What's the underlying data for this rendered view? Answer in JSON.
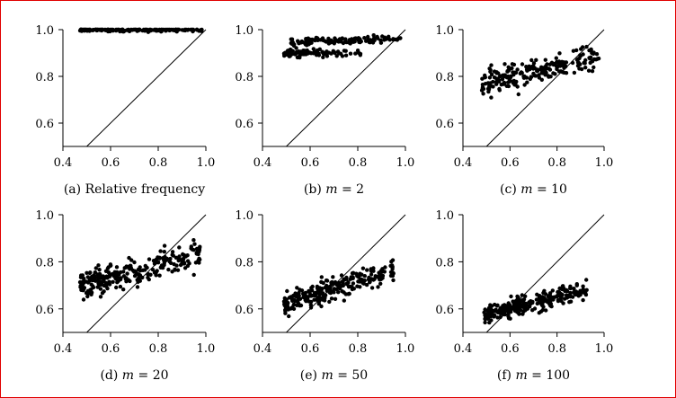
{
  "chart_data": [
    {
      "type": "scatter",
      "caption_prefix": "(a) Relative frequency",
      "caption_var": "",
      "caption_value": "",
      "xlim": [
        0.4,
        1.0
      ],
      "ylim": [
        0.5,
        1.0
      ],
      "xticks": [
        "0.4",
        "0.6",
        "0.8",
        "1.0"
      ],
      "yticks": [
        "0.6",
        "0.8",
        "1.0"
      ],
      "diagonal": true,
      "point_clusters": [
        {
          "n": 170,
          "x_range": [
            0.47,
            0.99
          ],
          "y_center": 1.0,
          "y_noise": 0.005,
          "y_slope": 0.0,
          "seed": 11
        }
      ]
    },
    {
      "type": "scatter",
      "caption_prefix": "(b) ",
      "caption_var": "m",
      "caption_value": " = 2",
      "xlim": [
        0.4,
        1.0
      ],
      "ylim": [
        0.5,
        1.0
      ],
      "xticks": [
        "0.4",
        "0.6",
        "0.8",
        "1.0"
      ],
      "yticks": [
        "0.6",
        "0.8",
        "1.0"
      ],
      "diagonal": true,
      "point_clusters": [
        {
          "n": 130,
          "x_range": [
            0.52,
            0.98
          ],
          "y_center": 0.945,
          "y_noise": 0.008,
          "y_slope": 0.03,
          "seed": 21
        },
        {
          "n": 90,
          "x_range": [
            0.49,
            0.82
          ],
          "y_center": 0.9,
          "y_noise": 0.007,
          "y_slope": 0.0,
          "seed": 22
        }
      ]
    },
    {
      "type": "scatter",
      "caption_prefix": "(c) ",
      "caption_var": "m",
      "caption_value": " = 10",
      "xlim": [
        0.4,
        1.0
      ],
      "ylim": [
        0.5,
        1.0
      ],
      "xticks": [
        "0.4",
        "0.6",
        "0.8",
        "1.0"
      ],
      "yticks": [
        "0.6",
        "0.8",
        "1.0"
      ],
      "diagonal": true,
      "point_clusters": [
        {
          "n": 230,
          "x_range": [
            0.48,
            0.98
          ],
          "y_center": 0.77,
          "y_noise": 0.028,
          "y_slope": 0.22,
          "seed": 31
        }
      ]
    },
    {
      "type": "scatter",
      "caption_prefix": "(d) ",
      "caption_var": "m",
      "caption_value": " = 20",
      "xlim": [
        0.4,
        1.0
      ],
      "ylim": [
        0.5,
        1.0
      ],
      "xticks": [
        "0.4",
        "0.6",
        "0.8",
        "1.0"
      ],
      "yticks": [
        "0.6",
        "0.8",
        "1.0"
      ],
      "diagonal": true,
      "point_clusters": [
        {
          "n": 260,
          "x_range": [
            0.47,
            0.98
          ],
          "y_center": 0.7,
          "y_noise": 0.028,
          "y_slope": 0.26,
          "seed": 41
        }
      ]
    },
    {
      "type": "scatter",
      "caption_prefix": "(e) ",
      "caption_var": "m",
      "caption_value": " = 50",
      "xlim": [
        0.4,
        1.0
      ],
      "ylim": [
        0.5,
        1.0
      ],
      "xticks": [
        "0.4",
        "0.6",
        "0.8",
        "1.0"
      ],
      "yticks": [
        "0.6",
        "0.8",
        "1.0"
      ],
      "diagonal": true,
      "point_clusters": [
        {
          "n": 260,
          "x_range": [
            0.49,
            0.95
          ],
          "y_center": 0.625,
          "y_noise": 0.025,
          "y_slope": 0.28,
          "seed": 51
        }
      ]
    },
    {
      "type": "scatter",
      "caption_prefix": "(f) ",
      "caption_var": "m",
      "caption_value": " = 100",
      "xlim": [
        0.4,
        1.0
      ],
      "ylim": [
        0.5,
        1.0
      ],
      "xticks": [
        "0.4",
        "0.6",
        "0.8",
        "1.0"
      ],
      "yticks": [
        "0.6",
        "0.8",
        "1.0"
      ],
      "diagonal": true,
      "point_clusters": [
        {
          "n": 260,
          "x_range": [
            0.49,
            0.93
          ],
          "y_center": 0.575,
          "y_noise": 0.02,
          "y_slope": 0.25,
          "seed": 61
        }
      ]
    }
  ]
}
